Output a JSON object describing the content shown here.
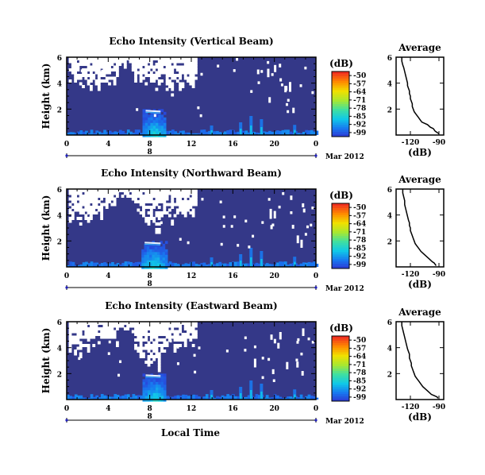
{
  "figure": {
    "xlabel": "Local Time",
    "date_label": "Mar 2012",
    "day_label": "8",
    "unit_label": "(dB)",
    "avg_title": "Average"
  },
  "colorbar": {
    "ticks": [
      "-50",
      "-57",
      "-64",
      "-71",
      "-78",
      "-85",
      "-92",
      "-99"
    ],
    "colors": [
      "#f03020",
      "#ff8a00",
      "#f0e000",
      "#a8e830",
      "#40e0a0",
      "#10c8e8",
      "#1878f0",
      "#3030d0"
    ]
  },
  "chart_data": [
    {
      "type": "heatmap",
      "title": "Echo Intensity (Vertical Beam)",
      "ylabel": "Height (km)",
      "x_ticks": [
        "0",
        "4",
        "8",
        "12",
        "16",
        "20",
        "0"
      ],
      "xlim": [
        0,
        24
      ],
      "y_ticks": [
        "6",
        "4",
        "2"
      ],
      "ylim": [
        0,
        6
      ],
      "clim": [
        -99,
        -50
      ],
      "background_color": "#343888",
      "missing_color": "#ffffff",
      "features": [
        {
          "kind": "missing-region",
          "t0": 0.2,
          "t1": 12.5,
          "h0": 3.5,
          "h1": 6.2
        },
        {
          "kind": "echo-column",
          "t0": 7.3,
          "t1": 9.5,
          "h0": 0,
          "h1": 2.0,
          "peak_db": -85
        },
        {
          "kind": "surface-echo",
          "t0": 0,
          "t1": 24,
          "h0": 0,
          "h1": 0.3,
          "peak_db": -90
        }
      ]
    },
    {
      "type": "line",
      "title": "Average",
      "xlabel": "(dB)",
      "x_ticks": [
        "-120",
        "-90"
      ],
      "xlim": [
        -135,
        -85
      ],
      "y_ticks": [
        "6",
        "4",
        "2"
      ],
      "ylim": [
        0,
        6
      ],
      "x": [
        -129,
        -129,
        -128,
        -127,
        -126,
        -125,
        -124,
        -123,
        -123,
        -122,
        -121,
        -121,
        -120,
        -120,
        -119,
        -118,
        -118,
        -117,
        -116,
        -114,
        -112,
        -110,
        -108,
        -105,
        -102,
        -99,
        -96,
        -94,
        -92,
        -90
      ],
      "y": [
        6.0,
        5.7,
        5.4,
        5.2,
        4.9,
        4.6,
        4.3,
        4.0,
        3.8,
        3.6,
        3.4,
        3.2,
        3.0,
        2.8,
        2.6,
        2.4,
        2.2,
        2.0,
        1.8,
        1.6,
        1.4,
        1.2,
        1.0,
        0.9,
        0.8,
        0.6,
        0.5,
        0.3,
        0.2,
        0.1
      ]
    },
    {
      "type": "heatmap",
      "title": "Echo Intensity (Northward Beam)",
      "ylabel": "Height (km)",
      "x_ticks": [
        "0",
        "4",
        "8",
        "12",
        "16",
        "20",
        "0"
      ],
      "xlim": [
        0,
        24
      ],
      "y_ticks": [
        "6",
        "4",
        "2"
      ],
      "ylim": [
        0,
        6
      ],
      "clim": [
        -99,
        -50
      ],
      "background_color": "#343888",
      "missing_color": "#ffffff",
      "features": [
        {
          "kind": "missing-region",
          "t0": 0.2,
          "t1": 12.5,
          "h0": 3.6,
          "h1": 6.2
        },
        {
          "kind": "echo-column",
          "t0": 7.2,
          "t1": 9.5,
          "h0": 0,
          "h1": 2.0,
          "peak_db": -85
        },
        {
          "kind": "surface-echo",
          "t0": 0,
          "t1": 24,
          "h0": 0,
          "h1": 0.3,
          "peak_db": -90
        }
      ]
    },
    {
      "type": "line",
      "title": "Average",
      "xlabel": "(dB)",
      "x_ticks": [
        "-120",
        "-90"
      ],
      "xlim": [
        -135,
        -85
      ],
      "y_ticks": [
        "6",
        "4",
        "2"
      ],
      "ylim": [
        0,
        6
      ],
      "x": [
        -128,
        -128,
        -127,
        -126,
        -126,
        -125,
        -124,
        -123,
        -122,
        -121,
        -121,
        -120,
        -120,
        -119,
        -118,
        -117,
        -116,
        -115,
        -113,
        -111,
        -109,
        -106,
        -103,
        -100,
        -97,
        -95,
        -93
      ],
      "y": [
        6.0,
        5.7,
        5.4,
        5.1,
        4.8,
        4.5,
        4.2,
        3.9,
        3.6,
        3.4,
        3.2,
        3.0,
        2.8,
        2.6,
        2.4,
        2.2,
        2.0,
        1.8,
        1.6,
        1.4,
        1.2,
        1.0,
        0.8,
        0.6,
        0.4,
        0.3,
        0.1
      ]
    },
    {
      "type": "heatmap",
      "title": "Echo Intensity (Eastward Beam)",
      "ylabel": "Height (km)",
      "x_ticks": [
        "0",
        "4",
        "8",
        "12",
        "16",
        "20",
        "0"
      ],
      "xlim": [
        0,
        24
      ],
      "y_ticks": [
        "6",
        "4",
        "2"
      ],
      "ylim": [
        0,
        6
      ],
      "clim": [
        -99,
        -50
      ],
      "background_color": "#343888",
      "missing_color": "#ffffff",
      "features": [
        {
          "kind": "missing-region",
          "t0": 0.2,
          "t1": 12.5,
          "h0": 3.4,
          "h1": 6.2
        },
        {
          "kind": "echo-column",
          "t0": 7.3,
          "t1": 9.5,
          "h0": 0,
          "h1": 2.0,
          "peak_db": -85
        },
        {
          "kind": "surface-echo",
          "t0": 0,
          "t1": 24,
          "h0": 0,
          "h1": 0.3,
          "peak_db": -90
        }
      ]
    },
    {
      "type": "line",
      "title": "Average",
      "xlabel": "(dB)",
      "x_ticks": [
        "-120",
        "-90"
      ],
      "xlim": [
        -135,
        -85
      ],
      "y_ticks": [
        "6",
        "4",
        "2"
      ],
      "ylim": [
        0,
        6
      ],
      "x": [
        -129,
        -129,
        -128,
        -127,
        -126,
        -125,
        -124,
        -123,
        -122,
        -121,
        -121,
        -120,
        -119,
        -119,
        -118,
        -117,
        -116,
        -115,
        -113,
        -111,
        -109,
        -107,
        -104,
        -101,
        -98,
        -95,
        -92,
        -91
      ],
      "y": [
        6.0,
        5.7,
        5.4,
        5.1,
        4.8,
        4.5,
        4.2,
        3.9,
        3.7,
        3.5,
        3.2,
        3.0,
        2.8,
        2.6,
        2.4,
        2.2,
        2.0,
        1.8,
        1.6,
        1.4,
        1.2,
        1.0,
        0.8,
        0.6,
        0.4,
        0.3,
        0.2,
        0.1
      ]
    }
  ]
}
